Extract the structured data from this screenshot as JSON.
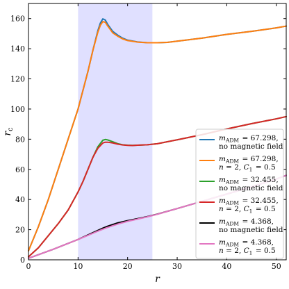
{
  "chart_data": {
    "type": "line",
    "xlabel": "r",
    "ylabel": "r_c",
    "xlim": [
      0,
      52
    ],
    "ylim": [
      0,
      170
    ],
    "xticks": [
      0,
      10,
      20,
      30,
      40,
      50
    ],
    "yticks": [
      0,
      20,
      40,
      60,
      80,
      100,
      120,
      140,
      160
    ],
    "shaded_region": {
      "x": [
        10,
        25
      ],
      "color": "#e0e0ff"
    },
    "legend_position": "lower-right",
    "series": [
      {
        "name": "m_ADM = 67.298, no magnetic field",
        "legend_lines": [
          "m_ADM = 67.298,",
          "no magnetic field"
        ],
        "color": "#1f77b4",
        "x": [
          0,
          2,
          4,
          6,
          8,
          10,
          12,
          13,
          14,
          14.5,
          15,
          15.5,
          16,
          17,
          18,
          19,
          20,
          22,
          24,
          26,
          28,
          30,
          35,
          40,
          45,
          50,
          52
        ],
        "y": [
          6,
          22,
          40,
          60,
          80,
          100,
          125,
          139,
          152,
          157,
          159.8,
          159,
          156,
          151.5,
          149,
          147,
          145.7,
          144.5,
          144,
          144,
          144.2,
          145,
          147,
          149.5,
          151.5,
          153.8,
          155
        ]
      },
      {
        "name": "m_ADM = 67.298, n = 2, C_1 = 0.5",
        "legend_lines": [
          "m_ADM = 67.298,",
          "n = 2,  C_1 = 0.5"
        ],
        "color": "#ff7f0e",
        "x": [
          0,
          2,
          4,
          6,
          8,
          10,
          12,
          13,
          14,
          14.5,
          15,
          15.5,
          16,
          17,
          18,
          19,
          20,
          22,
          24,
          26,
          28,
          30,
          35,
          40,
          45,
          50,
          52
        ],
        "y": [
          6,
          22,
          40,
          60,
          80,
          100,
          125,
          139,
          151,
          155.5,
          158,
          157.5,
          155,
          150.5,
          148.3,
          146.5,
          145.4,
          144.4,
          144,
          144,
          144.2,
          145,
          147,
          149.5,
          151.5,
          153.8,
          155
        ]
      },
      {
        "name": "m_ADM = 32.455, no magnetic field",
        "legend_lines": [
          "m_ADM = 32.455,",
          "no magnetic field"
        ],
        "color": "#2ca02c",
        "x": [
          0,
          2,
          4,
          6,
          8,
          10,
          11,
          12,
          13,
          14,
          15,
          15.5,
          16,
          17,
          18,
          19,
          20,
          21,
          22,
          24,
          26,
          30,
          35,
          40,
          45,
          50,
          52
        ],
        "y": [
          2,
          8,
          16,
          24,
          33,
          45,
          52,
          60,
          68,
          75,
          79.3,
          79.8,
          79.5,
          78.3,
          77,
          76.3,
          76,
          75.9,
          76,
          76.3,
          77,
          79.6,
          83,
          86.8,
          90.3,
          93.5,
          95
        ]
      },
      {
        "name": "m_ADM = 32.455, n = 2, C_1 = 0.5",
        "legend_lines": [
          "m_ADM = 32.455,",
          "n = 2,  C_1 = 0.5"
        ],
        "color": "#d62728",
        "x": [
          0,
          2,
          4,
          6,
          8,
          10,
          11,
          12,
          13,
          14,
          15,
          15.5,
          16,
          17,
          18,
          19,
          20,
          21,
          22,
          24,
          26,
          30,
          35,
          40,
          45,
          50,
          52
        ],
        "y": [
          2,
          8,
          16,
          24,
          33,
          45,
          52,
          60,
          68,
          74,
          77.5,
          78,
          78,
          77.5,
          76.7,
          76.2,
          75.9,
          75.8,
          76,
          76.3,
          77,
          79.6,
          83,
          86.8,
          90.3,
          93.5,
          95
        ]
      },
      {
        "name": "m_ADM = 4.368, no magnetic field",
        "legend_lines": [
          "m_ADM = 4.368,",
          "no magnetic field"
        ],
        "color": "#000000",
        "x": [
          0,
          5,
          10,
          12,
          14,
          15,
          16,
          18,
          20,
          22,
          24,
          26,
          30,
          35,
          40,
          45,
          50,
          52
        ],
        "y": [
          1,
          7,
          13.5,
          16.5,
          19.5,
          21,
          22.3,
          24.5,
          26,
          27.3,
          28.7,
          30.3,
          34,
          38.8,
          43.6,
          48.4,
          53.6,
          56
        ]
      },
      {
        "name": "m_ADM = 4.368, n = 2, C_1 = 0.5",
        "legend_lines": [
          "m_ADM = 4.368,",
          "n = 2,  C_1 = 0.5"
        ],
        "color": "#e377c2",
        "x": [
          0,
          5,
          10,
          12,
          14,
          15,
          16,
          18,
          20,
          22,
          24,
          26,
          30,
          35,
          40,
          45,
          50,
          52
        ],
        "y": [
          1,
          7,
          13.5,
          16.2,
          19,
          20.3,
          21.5,
          23.7,
          25.5,
          27,
          28.5,
          30.2,
          34,
          38.8,
          43.6,
          48.4,
          53.6,
          56
        ]
      }
    ]
  }
}
